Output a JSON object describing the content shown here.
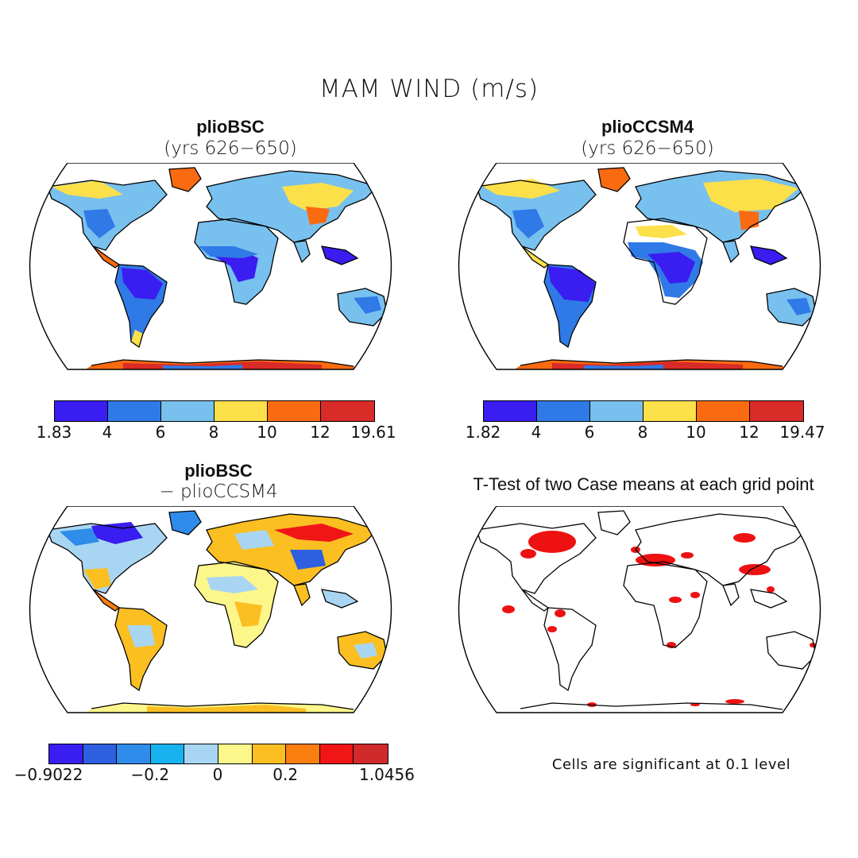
{
  "title": "MAM WIND (m/s)",
  "panels": {
    "top_left": {
      "title": "plioBSC",
      "subtitle": "(yrs 626−650)"
    },
    "top_right": {
      "title": "plioCCSM4",
      "subtitle": "(yrs 626−650)"
    },
    "bottom_left": {
      "title": "plioBSC",
      "subtitle": "− plioCCSM4"
    },
    "bottom_right": {
      "title": "T-Test of two Case means at each grid point",
      "note": "Cells are significant at 0.1 level"
    }
  },
  "colorbars": {
    "top_left": {
      "labels": [
        "1.83",
        "4",
        "6",
        "8",
        "10",
        "12",
        "19.61"
      ],
      "colors": [
        "#3a1df0",
        "#2f7ae6",
        "#78c0ee",
        "#fce04a",
        "#fa6a10",
        "#d92b28"
      ]
    },
    "top_right": {
      "labels": [
        "1.82",
        "4",
        "6",
        "8",
        "10",
        "12",
        "19.47"
      ],
      "colors": [
        "#3a1df0",
        "#2f7ae6",
        "#78c0ee",
        "#fce04a",
        "#fa6a10",
        "#d92b28"
      ]
    },
    "bottom_left": {
      "labels": [
        "−0.9022",
        "−0.2",
        "0",
        "0.2",
        "1.0456"
      ],
      "label_boundary_index": [
        0,
        3,
        5,
        7,
        10
      ],
      "colors": [
        "#3a1df0",
        "#2e5fe0",
        "#2f8cea",
        "#16b3f0",
        "#a8d6f2",
        "#fdf68a",
        "#fbbf22",
        "#fa7d10",
        "#f01616",
        "#d12a2a"
      ]
    }
  }
}
